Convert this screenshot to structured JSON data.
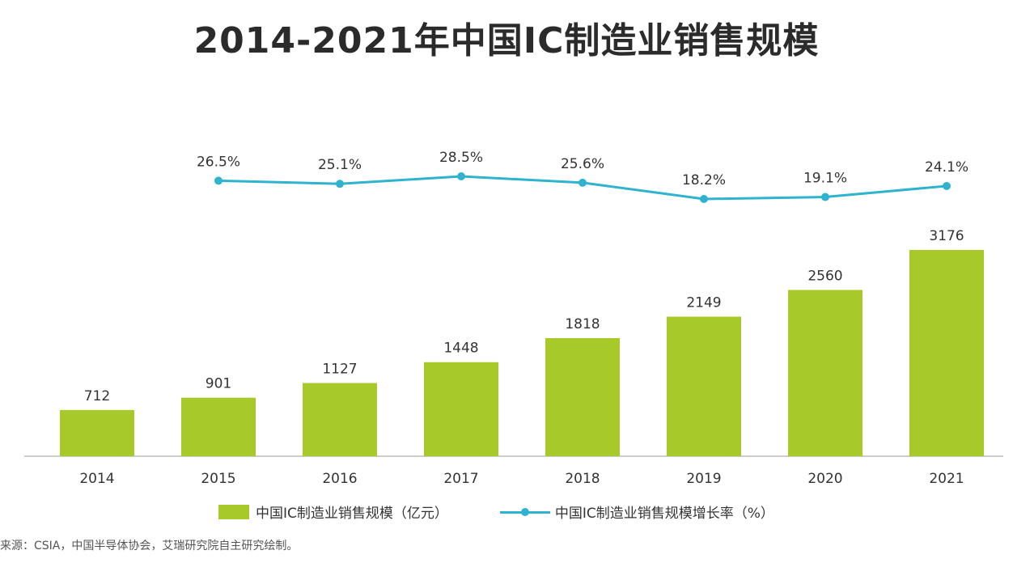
{
  "title": "2014-2021年中国IC制造业销售规模",
  "source": "来源：CSIA，中国半导体协会，艾瑞研究院自主研究绘制。",
  "colors": {
    "bar": "#a8c92a",
    "line": "#2fb3cf",
    "axis": "#999999",
    "text": "#333333"
  },
  "chart_data": {
    "type": "bar",
    "title": "2014-2021年中国IC制造业销售规模",
    "categories": [
      "2014",
      "2015",
      "2016",
      "2017",
      "2018",
      "2019",
      "2020",
      "2021"
    ],
    "series": [
      {
        "name": "中国IC制造业销售规模（亿元）",
        "type": "bar",
        "values": [
          712,
          901,
          1127,
          1448,
          1818,
          2149,
          2560,
          3176
        ],
        "labels": [
          "712",
          "901",
          "1127",
          "1448",
          "1818",
          "2149",
          "2560",
          "3176"
        ]
      },
      {
        "name": "中国IC制造业销售规模增长率（%）",
        "type": "line",
        "values": [
          26.5,
          25.1,
          28.5,
          25.6,
          18.2,
          19.1,
          24.1
        ],
        "x": [
          "2015",
          "2016",
          "2017",
          "2018",
          "2019",
          "2020",
          "2021"
        ],
        "labels": [
          "26.5%",
          "25.1%",
          "28.5%",
          "25.6%",
          "18.2%",
          "19.1%",
          "24.1%"
        ]
      }
    ],
    "ylim": [
      0,
      3176
    ],
    "grid": false,
    "legend": "bottom"
  }
}
